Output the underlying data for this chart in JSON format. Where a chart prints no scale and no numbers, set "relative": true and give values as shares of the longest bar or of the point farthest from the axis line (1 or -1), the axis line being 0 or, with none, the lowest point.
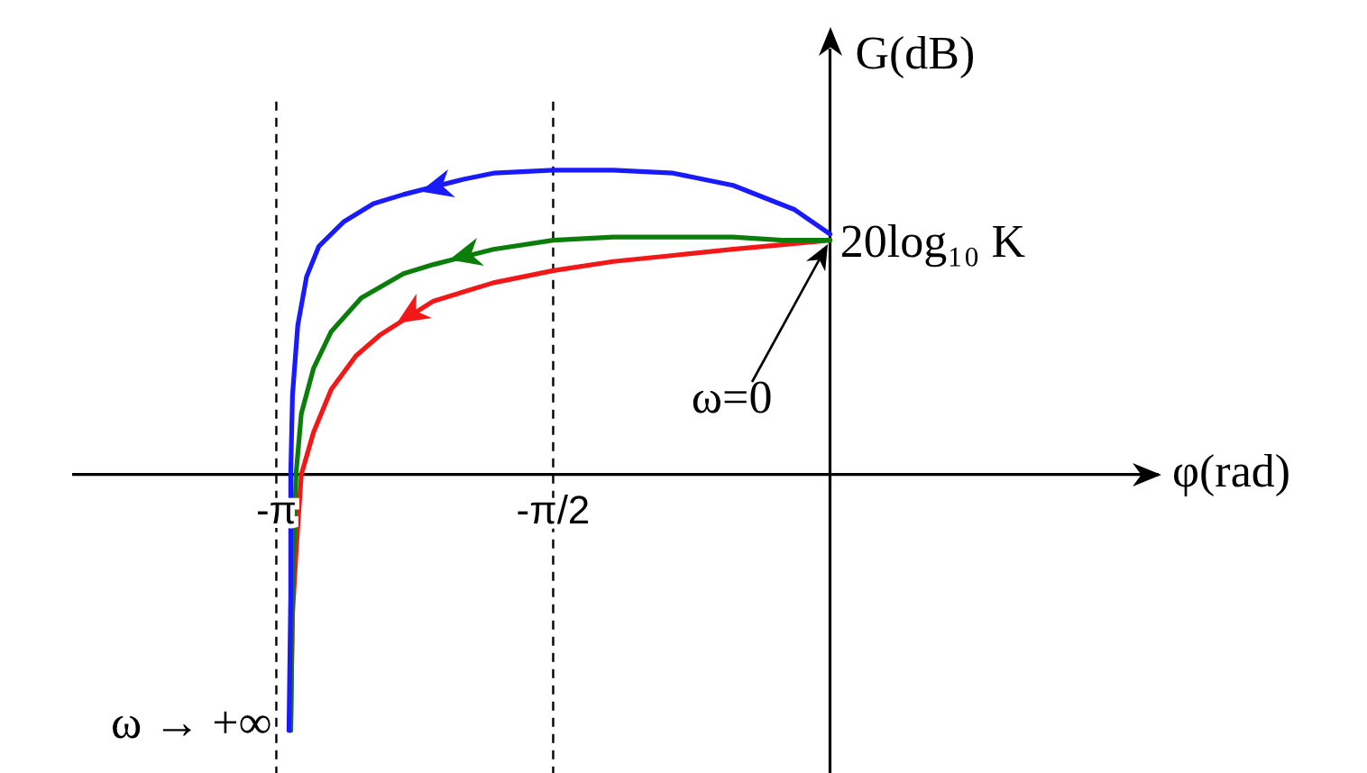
{
  "chart_data": {
    "type": "line",
    "xlabel": "φ(rad)",
    "ylabel": "G(dB)",
    "relative": true,
    "marker": "none",
    "xlim": [
      -4.29,
      1.86
    ],
    "xticks": [
      {
        "value": -3.1416,
        "label": "-π"
      },
      {
        "value": -1.5708,
        "label": "-π/2"
      }
    ],
    "series": [
      {
        "color": "#1a1aff",
        "x": [
          0,
          -0.1,
          -0.2,
          -0.55,
          -0.89,
          -1.23,
          -1.57,
          -1.91,
          -2.08,
          -2.42,
          -2.59,
          -2.76,
          -2.9,
          -2.97,
          -3.02,
          -3.05,
          -3.06,
          -3.06,
          -3.07
        ],
        "values": [
          0.79,
          0.83,
          0.87,
          0.95,
          0.99,
          1.0,
          1.0,
          0.99,
          0.97,
          0.92,
          0.89,
          0.83,
          0.75,
          0.65,
          0.49,
          0.26,
          0,
          -0.4,
          -0.84
        ]
      },
      {
        "color": "#0b7d0b",
        "x": [
          0,
          -0.27,
          -0.55,
          -0.89,
          -1.23,
          -1.57,
          -1.91,
          -2.25,
          -2.42,
          -2.66,
          -2.83,
          -2.93,
          -3.0,
          -3.03,
          -3.05,
          -3.06
        ],
        "values": [
          0.77,
          0.77,
          0.78,
          0.78,
          0.78,
          0.77,
          0.74,
          0.69,
          0.66,
          0.58,
          0.47,
          0.35,
          0.2,
          0,
          -0.4,
          -0.84
        ]
      },
      {
        "color": "#f21818",
        "x": [
          0,
          -0.27,
          -0.55,
          -0.89,
          -1.23,
          -1.57,
          -1.91,
          -2.25,
          -2.55,
          -2.69,
          -2.83,
          -2.93,
          -3.0,
          -3.03,
          -3.05,
          -3.06
        ],
        "values": [
          0.77,
          0.755,
          0.74,
          0.72,
          0.7,
          0.67,
          0.63,
          0.57,
          0.46,
          0.39,
          0.28,
          0.14,
          0,
          -0.26,
          -0.46,
          -0.84
        ]
      }
    ],
    "ref_lines": [
      {
        "axis": "x",
        "value": -3.1416,
        "line_style": "dashed",
        "color": "#000000"
      },
      {
        "axis": "x",
        "value": -1.5708,
        "line_style": "dashed",
        "color": "#000000"
      }
    ],
    "annotations": [
      "20log₁₀ K",
      "ω=0",
      "ω → +∞"
    ]
  }
}
